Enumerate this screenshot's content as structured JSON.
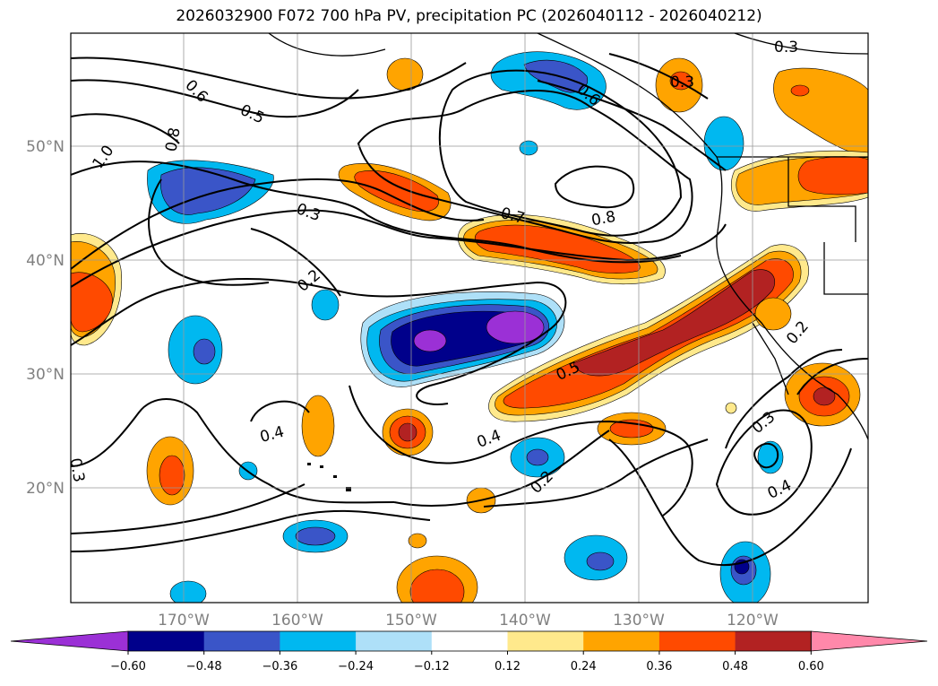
{
  "title": "2026032900 F072 700 hPa PV, precipitation PC (2026040112 - 2026040212)",
  "map": {
    "lon_labels": [
      "170°W",
      "160°W",
      "150°W",
      "140°W",
      "130°W",
      "120°W"
    ],
    "lat_labels": [
      "50°N",
      "40°N",
      "30°N",
      "20°N"
    ],
    "grid": true,
    "contour_labels": [
      "0.6",
      "0.5",
      "1.0",
      "0.8",
      "0.3",
      "0.2",
      "0.7",
      "0.8",
      "0.6",
      "0.3",
      "0.3",
      "0.4",
      "0.5",
      "0.4",
      "0.2",
      "0.3",
      "0.4",
      "0.2",
      "0.3"
    ]
  },
  "colorbar": {
    "ticks": [
      "−0.60",
      "−0.48",
      "−0.36",
      "−0.24",
      "−0.12",
      "0.12",
      "0.24",
      "0.36",
      "0.48",
      "0.60"
    ],
    "colors": [
      "#9b30d6",
      "#00008b",
      "#3a55c8",
      "#00b8f0",
      "#aee0f8",
      "#ffffff",
      "#ffe98c",
      "#ffa400",
      "#ff4a00",
      "#b22222",
      "#ff88aa"
    ]
  }
}
